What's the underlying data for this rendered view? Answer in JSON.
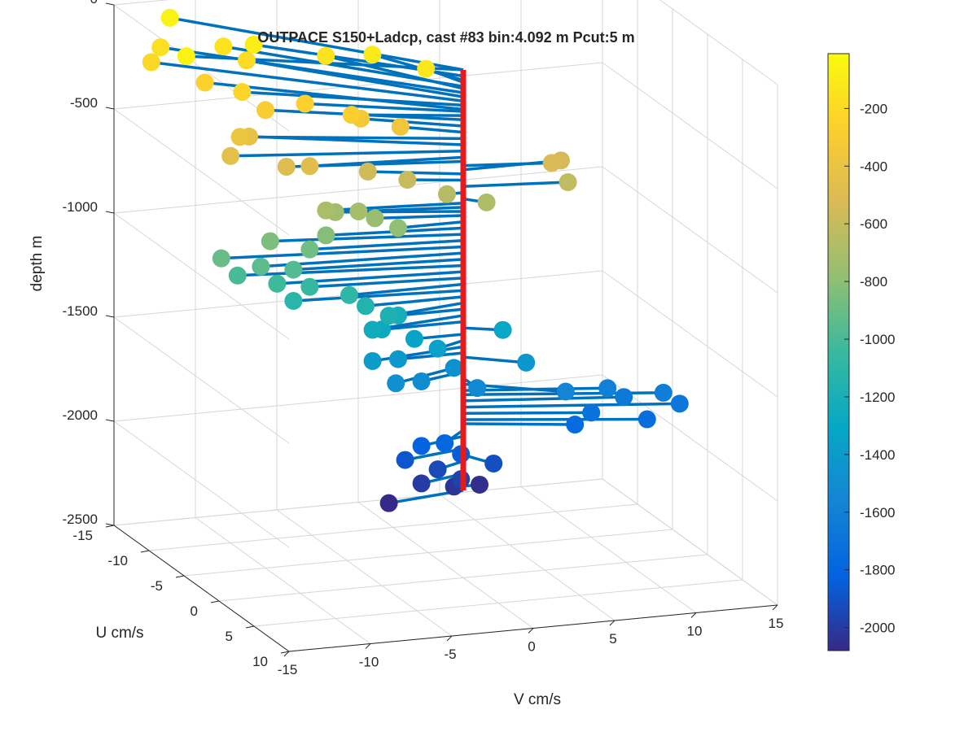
{
  "chart_data": {
    "type": "scatter",
    "title": "OUTPACE S150+Ladcp, cast #83 bin:4.092 m  Pcut:5 m",
    "xlabel": "V cm/s",
    "ylabel": "U cm/s",
    "zlabel": "depth m",
    "xlim": [
      -15,
      15
    ],
    "ylim": [
      -15,
      10
    ],
    "zlim": [
      -2500,
      0
    ],
    "x_ticks": [
      -15,
      -10,
      -5,
      0,
      5,
      10,
      15
    ],
    "y_ticks": [
      -15,
      -10,
      -5,
      0,
      5,
      10
    ],
    "z_ticks": [
      0,
      -500,
      -1000,
      -1500,
      -2000,
      -2500
    ],
    "x_tick_labels": [
      "-15",
      "-10",
      "-5",
      "0",
      "5",
      "10",
      "15"
    ],
    "y_tick_labels": [
      "-15",
      "-10",
      "-5",
      "0",
      "5",
      "10"
    ],
    "z_tick_labels": [
      "0",
      "-500",
      "-1000",
      "-1500",
      "-2000",
      "-2500"
    ],
    "grid": true,
    "view": "3d",
    "colorbar": {
      "colormap": "parula",
      "range": [
        -2080,
        -10
      ],
      "ticks": [
        -200,
        -400,
        -600,
        -800,
        -1000,
        -1200,
        -1400,
        -1600,
        -1800,
        -2000
      ],
      "tick_labels": [
        "-200",
        "-400",
        "-600",
        "-800",
        "-1000",
        "-1200",
        "-1400",
        "-1600",
        "-1800",
        "-2000"
      ],
      "colors": [
        "#352a87",
        "#0363e1",
        "#1485d4",
        "#06a7c6",
        "#38b99e",
        "#92bf73",
        "#d9ba56",
        "#fcce2e",
        "#f9fb0e"
      ]
    },
    "stick_color": "#0072bd",
    "profile_color": "#e41a1c",
    "points": [
      {
        "depth": -60,
        "u": -14,
        "v": -12
      },
      {
        "depth": -60,
        "u": -7,
        "v": -14
      },
      {
        "depth": -90,
        "u": -9,
        "v": -9
      },
      {
        "depth": -110,
        "u": -6,
        "v": -3
      },
      {
        "depth": -120,
        "u": -3,
        "v": -1
      },
      {
        "depth": -140,
        "u": -11,
        "v": -10
      },
      {
        "depth": -150,
        "u": -8,
        "v": -5
      },
      {
        "depth": -170,
        "u": -13,
        "v": -13
      },
      {
        "depth": -190,
        "u": -10,
        "v": -9
      },
      {
        "depth": -210,
        "u": -12,
        "v": -14
      },
      {
        "depth": -230,
        "u": -6,
        "v": -11
      },
      {
        "depth": -250,
        "u": -9,
        "v": -12
      },
      {
        "depth": -260,
        "u": -4,
        "v": -8
      },
      {
        "depth": -280,
        "u": -2,
        "v": -6
      },
      {
        "depth": -300,
        "u": -5,
        "v": -10
      },
      {
        "depth": -330,
        "u": -3,
        "v": -5
      },
      {
        "depth": -360,
        "u": -2,
        "v": -3
      },
      {
        "depth": -390,
        "u": -4,
        "v": -12
      },
      {
        "depth": -420,
        "u": -5,
        "v": -11
      },
      {
        "depth": -450,
        "u": -3,
        "v": -13
      },
      {
        "depth": -480,
        "u": -1,
        "v": -9
      },
      {
        "depth": -500,
        "u": -2,
        "v": -10
      },
      {
        "depth": -520,
        "u": 1,
        "v": 5
      },
      {
        "depth": -540,
        "u": 0,
        "v": 6
      },
      {
        "depth": -560,
        "u": -2,
        "v": -5
      },
      {
        "depth": -590,
        "u": -1,
        "v": -3
      },
      {
        "depth": -620,
        "u": 1,
        "v": 6
      },
      {
        "depth": -650,
        "u": 0,
        "v": -1
      },
      {
        "depth": -680,
        "u": 1,
        "v": 1
      },
      {
        "depth": -700,
        "u": -1,
        "v": -8
      },
      {
        "depth": -720,
        "u": -1,
        "v": -6
      },
      {
        "depth": -740,
        "u": -2,
        "v": -7
      },
      {
        "depth": -760,
        "u": -1,
        "v": -5
      },
      {
        "depth": -790,
        "u": 0,
        "v": -4
      },
      {
        "depth": -820,
        "u": -1,
        "v": -8
      },
      {
        "depth": -850,
        "u": -2,
        "v": -11
      },
      {
        "depth": -880,
        "u": -1,
        "v": -9
      },
      {
        "depth": -910,
        "u": -2,
        "v": -14
      },
      {
        "depth": -940,
        "u": -1,
        "v": -12
      },
      {
        "depth": -970,
        "u": -1,
        "v": -10
      },
      {
        "depth": -1000,
        "u": -2,
        "v": -13
      },
      {
        "depth": -1030,
        "u": -1,
        "v": -11
      },
      {
        "depth": -1060,
        "u": -1,
        "v": -9
      },
      {
        "depth": -1090,
        "u": 0,
        "v": -7
      },
      {
        "depth": -1120,
        "u": -1,
        "v": -10
      },
      {
        "depth": -1150,
        "u": 0,
        "v": -6
      },
      {
        "depth": -1180,
        "u": 1,
        "v": -5
      },
      {
        "depth": -1210,
        "u": 0,
        "v": -4
      },
      {
        "depth": -1240,
        "u": 1,
        "v": -6
      },
      {
        "depth": -1270,
        "u": 0,
        "v": -5
      },
      {
        "depth": -1300,
        "u": 1,
        "v": 2
      },
      {
        "depth": -1330,
        "u": 0,
        "v": -3
      },
      {
        "depth": -1360,
        "u": 1,
        "v": -2
      },
      {
        "depth": -1390,
        "u": 1,
        "v": -6
      },
      {
        "depth": -1420,
        "u": 0,
        "v": -4
      },
      {
        "depth": -1440,
        "u": 2,
        "v": 3
      },
      {
        "depth": -1460,
        "u": 1,
        "v": -1
      },
      {
        "depth": -1480,
        "u": 2,
        "v": -5
      },
      {
        "depth": -1510,
        "u": 1,
        "v": -3
      },
      {
        "depth": -1540,
        "u": 2,
        "v": 0
      },
      {
        "depth": -1570,
        "u": 3,
        "v": 5
      },
      {
        "depth": -1600,
        "u": 2,
        "v": 8
      },
      {
        "depth": -1620,
        "u": 3,
        "v": 11
      },
      {
        "depth": -1650,
        "u": 2,
        "v": 9
      },
      {
        "depth": -1680,
        "u": 3,
        "v": 12
      },
      {
        "depth": -1710,
        "u": 2,
        "v": 7
      },
      {
        "depth": -1740,
        "u": 3,
        "v": 10
      },
      {
        "depth": -1760,
        "u": 2,
        "v": 6
      },
      {
        "depth": -1790,
        "u": 2,
        "v": -2
      },
      {
        "depth": -1820,
        "u": 1,
        "v": -3
      },
      {
        "depth": -1850,
        "u": 2,
        "v": -1
      },
      {
        "depth": -1880,
        "u": 1,
        "v": -4
      },
      {
        "depth": -1910,
        "u": 2,
        "v": 1
      },
      {
        "depth": -1940,
        "u": 1,
        "v": -2
      },
      {
        "depth": -1970,
        "u": 2,
        "v": -1
      },
      {
        "depth": -2000,
        "u": 1,
        "v": -3
      },
      {
        "depth": -2030,
        "u": 1,
        "v": -1
      },
      {
        "depth": -2060,
        "u": 0,
        "v": 1
      },
      {
        "depth": -2080,
        "u": 1,
        "v": -5
      }
    ]
  }
}
